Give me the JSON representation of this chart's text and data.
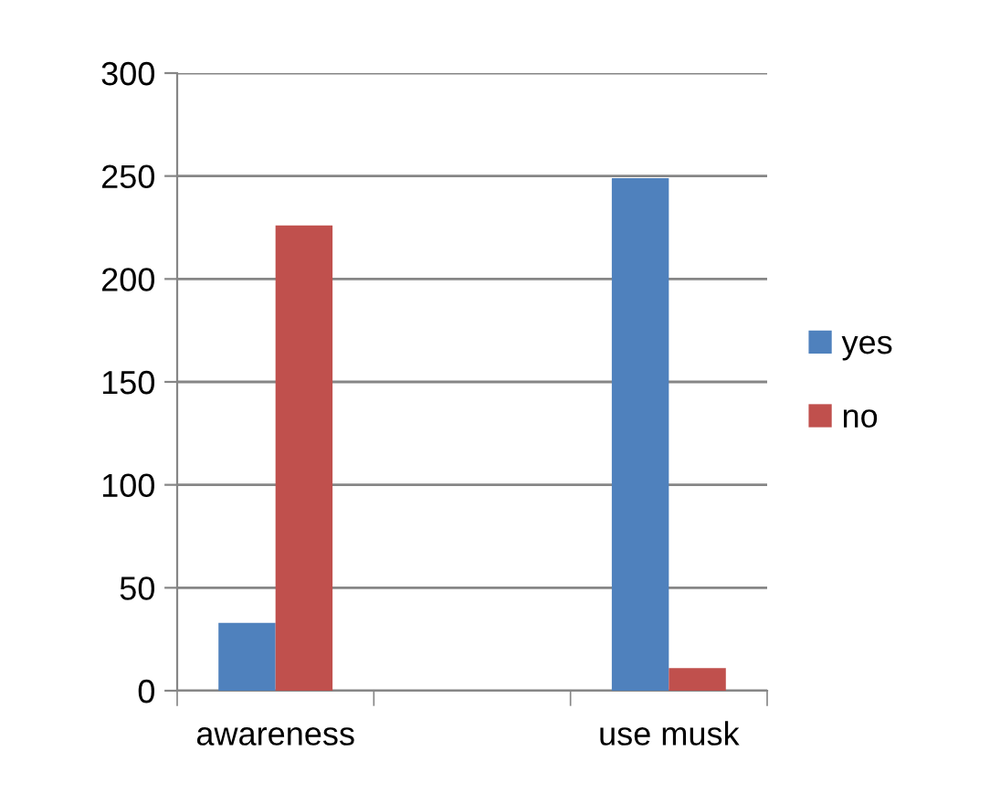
{
  "chart_data": {
    "type": "bar",
    "categories": [
      "awareness",
      null,
      "use musk"
    ],
    "series": [
      {
        "name": "yes",
        "color": "#4f81bd",
        "values": [
          33,
          null,
          249
        ]
      },
      {
        "name": "no",
        "color": "#c0504d",
        "values": [
          226,
          null,
          11
        ]
      }
    ],
    "ylim": [
      0,
      300
    ],
    "yticks": [
      0,
      50,
      100,
      150,
      200,
      250,
      300
    ],
    "grid": "y",
    "legend": "right"
  }
}
